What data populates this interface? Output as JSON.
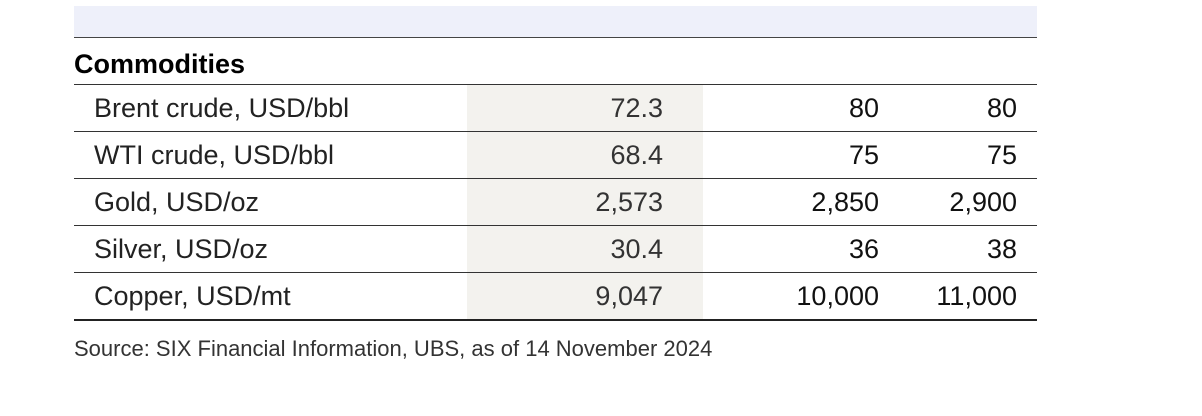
{
  "section": {
    "title": "Commodities"
  },
  "rows": [
    {
      "label": "Brent crude, USD/bbl",
      "current": "72.3",
      "forecast_1": "80",
      "forecast_2": "80"
    },
    {
      "label": "WTI crude, USD/bbl",
      "current": "68.4",
      "forecast_1": "75",
      "forecast_2": "75"
    },
    {
      "label": "Gold, USD/oz",
      "current": "2,573",
      "forecast_1": "2,850",
      "forecast_2": "2,900"
    },
    {
      "label": "Silver, USD/oz",
      "current": "30.4",
      "forecast_1": "36",
      "forecast_2": "38"
    },
    {
      "label": "Copper, USD/mt",
      "current": "9,047",
      "forecast_1": "10,000",
      "forecast_2": "11,000"
    }
  ],
  "footer": {
    "source": "Source: SIX Financial Information, UBS, as of 14 November 2024"
  },
  "colors": {
    "header_band": "#eef0fa",
    "current_column_shade": "#f3f2ee",
    "rule": "#333333"
  }
}
